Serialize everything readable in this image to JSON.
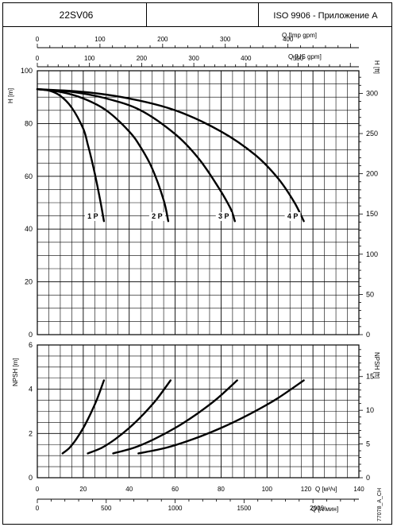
{
  "header": {
    "model": "22SV06",
    "standard": "ISO 9906 - Приложение A"
  },
  "axes": {
    "q_imp_label": "Q [Imp gpm]",
    "q_us_label": "Q [US gpm]",
    "q_m3h_label": "Q [м³/ч]",
    "q_lmin_label": "Q [л/мин]",
    "h_m_label": "H [m]",
    "h_ft_label": "H [ft]",
    "npsh_m_label": "NPSH [m]",
    "npsh_ft_label": "NPSH [ft]"
  },
  "footer": {
    "code": "77078_A_CH"
  },
  "chart_data": [
    {
      "type": "line",
      "title": "",
      "xlabel": "Q [м³/ч]",
      "ylabel": "H [m]",
      "xlim": [
        0,
        140
      ],
      "ylim": [
        0,
        100
      ],
      "secondary_axes": {
        "top_imp_gpm": {
          "label": "Q [Imp gpm]",
          "ticks": [
            0,
            100,
            200,
            300,
            400
          ]
        },
        "top_us_gpm": {
          "label": "Q [US gpm]",
          "ticks": [
            0,
            100,
            200,
            300,
            400,
            500
          ]
        },
        "right_ft": {
          "label": "H [ft]",
          "ticks": [
            0,
            50,
            100,
            150,
            200,
            250,
            300
          ]
        },
        "bottom_lmin": {
          "label": "Q [л/мин]",
          "ticks": [
            0,
            500,
            1000,
            1500,
            2000
          ]
        }
      },
      "x_ticks": [
        0,
        20,
        40,
        60,
        80,
        100,
        120,
        140
      ],
      "y_ticks": [
        0,
        20,
        40,
        60,
        80,
        100
      ],
      "grid": true,
      "series": [
        {
          "name": "1 P",
          "x": [
            0,
            5,
            10,
            15,
            20,
            22,
            24,
            26,
            28,
            29
          ],
          "y": [
            93,
            92.5,
            90.5,
            86,
            78,
            72,
            65,
            57,
            48,
            43
          ]
        },
        {
          "name": "2 P",
          "x": [
            0,
            10,
            20,
            30,
            40,
            45,
            50,
            55,
            57
          ],
          "y": [
            93,
            92,
            89.5,
            85,
            77,
            71,
            63,
            51,
            43
          ]
        },
        {
          "name": "3 P",
          "x": [
            0,
            15,
            30,
            45,
            60,
            70,
            78,
            84,
            86
          ],
          "y": [
            93,
            92,
            89.5,
            85,
            76,
            67,
            57,
            48,
            43
          ]
        },
        {
          "name": "4 P",
          "x": [
            0,
            20,
            40,
            60,
            80,
            95,
            105,
            112,
            116
          ],
          "y": [
            93,
            92,
            89.5,
            85,
            77,
            68,
            59,
            50,
            43
          ]
        }
      ]
    },
    {
      "type": "line",
      "title": "",
      "xlabel": "Q [м³/ч]",
      "ylabel": "NPSH [m]",
      "xlim": [
        0,
        140
      ],
      "ylim": [
        0,
        6
      ],
      "secondary_axes": {
        "right_ft": {
          "label": "NPSH [ft]",
          "ticks": [
            0,
            5,
            10,
            15
          ]
        }
      },
      "x_ticks": [
        0,
        20,
        40,
        60,
        80,
        100,
        120,
        140
      ],
      "y_ticks": [
        0,
        2,
        4,
        6
      ],
      "grid": true,
      "series": [
        {
          "name": "1 P",
          "x": [
            11,
            14,
            17,
            20,
            23,
            26,
            29
          ],
          "y": [
            1.1,
            1.35,
            1.75,
            2.25,
            2.85,
            3.55,
            4.4
          ]
        },
        {
          "name": "2 P",
          "x": [
            22,
            28,
            34,
            40,
            46,
            52,
            58
          ],
          "y": [
            1.1,
            1.35,
            1.75,
            2.25,
            2.85,
            3.55,
            4.4
          ]
        },
        {
          "name": "3 P",
          "x": [
            33,
            42,
            51,
            60,
            69,
            78,
            87
          ],
          "y": [
            1.1,
            1.35,
            1.75,
            2.25,
            2.85,
            3.55,
            4.4
          ]
        },
        {
          "name": "4 P",
          "x": [
            44,
            56,
            68,
            80,
            92,
            104,
            116
          ],
          "y": [
            1.1,
            1.35,
            1.75,
            2.25,
            2.85,
            3.55,
            4.4
          ]
        }
      ]
    }
  ]
}
